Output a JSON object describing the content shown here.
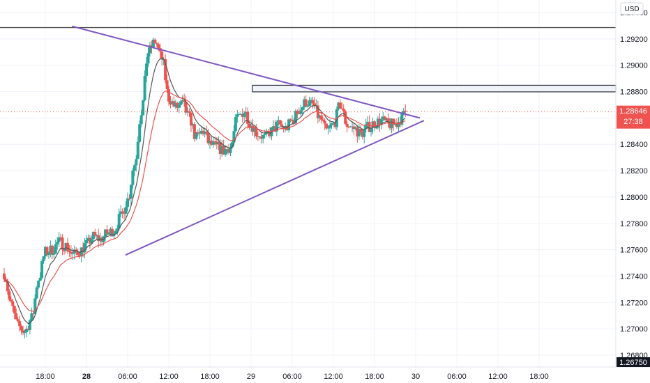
{
  "currency": "USD",
  "price_label": {
    "price": "1.28646",
    "countdown": "27:38",
    "color": "#ef5350"
  },
  "low_label": "1.26750",
  "colors": {
    "up": "#26a69a",
    "down": "#ef5350",
    "ema_fast": "#555555",
    "ema_slow": "#ef5350",
    "trendline": "#7e57c2",
    "zone_fill": "#f0f3fa",
    "zone_border": "#2a2e39",
    "hline": "#555555"
  },
  "chart_data": {
    "type": "candlestick",
    "ylim": [
      1.2675,
      1.2945
    ],
    "y_ticks": [
      "1.29400",
      "1.29200",
      "1.29000",
      "1.28800",
      "1.28600",
      "1.28400",
      "1.28200",
      "1.28000",
      "1.27800",
      "1.27600",
      "1.27400",
      "1.27200",
      "1.27000",
      "1.26800"
    ],
    "y_tick_values": [
      1.294,
      1.292,
      1.29,
      1.288,
      1.286,
      1.284,
      1.282,
      1.28,
      1.278,
      1.276,
      1.274,
      1.272,
      1.27,
      1.268
    ],
    "x_ticks": [
      {
        "label": "18:00",
        "hour": 18,
        "bold": false
      },
      {
        "label": "28",
        "hour": 24,
        "bold": true
      },
      {
        "label": "06:00",
        "hour": 30,
        "bold": false
      },
      {
        "label": "12:00",
        "hour": 36,
        "bold": false
      },
      {
        "label": "18:00",
        "hour": 42,
        "bold": false
      },
      {
        "label": "29",
        "hour": 48,
        "bold": false
      },
      {
        "label": "06:00",
        "hour": 54,
        "bold": false
      },
      {
        "label": "12:00",
        "hour": 60,
        "bold": false
      },
      {
        "label": "18:00",
        "hour": 66,
        "bold": false
      },
      {
        "label": "30",
        "hour": 72,
        "bold": false
      },
      {
        "label": "06:00",
        "hour": 78,
        "bold": false
      },
      {
        "label": "12:00",
        "hour": 84,
        "bold": false
      },
      {
        "label": "18:00",
        "hour": 90,
        "bold": false
      }
    ],
    "anchors": [
      [
        12,
        1.2742
      ],
      [
        13,
        1.2718
      ],
      [
        14,
        1.2702
      ],
      [
        15,
        1.2698
      ],
      [
        16,
        1.2708
      ],
      [
        17,
        1.2738
      ],
      [
        18,
        1.2758
      ],
      [
        19,
        1.276
      ],
      [
        20,
        1.2766
      ],
      [
        21,
        1.2763
      ],
      [
        22,
        1.2756
      ],
      [
        23,
        1.2759
      ],
      [
        24,
        1.2764
      ],
      [
        25,
        1.277
      ],
      [
        26,
        1.2768
      ],
      [
        27,
        1.2772
      ],
      [
        28,
        1.2775
      ],
      [
        29,
        1.2785
      ],
      [
        30,
        1.2798
      ],
      [
        31,
        1.2825
      ],
      [
        32,
        1.2865
      ],
      [
        33,
        1.291
      ],
      [
        34,
        1.2918
      ],
      [
        35,
        1.2905
      ],
      [
        36,
        1.2875
      ],
      [
        37,
        1.2868
      ],
      [
        38,
        1.287
      ],
      [
        39,
        1.286
      ],
      [
        40,
        1.2845
      ],
      [
        41,
        1.285
      ],
      [
        42,
        1.284
      ],
      [
        43,
        1.2838
      ],
      [
        44,
        1.2835
      ],
      [
        45,
        1.2838
      ],
      [
        46,
        1.286
      ],
      [
        47,
        1.2865
      ],
      [
        48,
        1.2855
      ],
      [
        49,
        1.2848
      ],
      [
        50,
        1.2845
      ],
      [
        51,
        1.285
      ],
      [
        52,
        1.2855
      ],
      [
        53,
        1.2852
      ],
      [
        54,
        1.2858
      ],
      [
        55,
        1.2866
      ],
      [
        56,
        1.2872
      ],
      [
        57,
        1.287
      ],
      [
        58,
        1.286
      ],
      [
        59,
        1.285
      ],
      [
        60,
        1.2855
      ],
      [
        61,
        1.287
      ],
      [
        62,
        1.2855
      ],
      [
        63,
        1.2852
      ],
      [
        64,
        1.2848
      ],
      [
        65,
        1.2853
      ],
      [
        66,
        1.2856
      ],
      [
        67,
        1.2858
      ],
      [
        68,
        1.2855
      ],
      [
        69,
        1.2855
      ],
      [
        70,
        1.286
      ],
      [
        70.5,
        1.28646
      ]
    ],
    "trend_lines": [
      {
        "name": "upper",
        "p1": [
          21.9,
          1.29296
        ],
        "p2": [
          72.6,
          1.286
        ]
      },
      {
        "name": "lower",
        "p1": [
          29.7,
          1.2756
        ],
        "p2": [
          73.2,
          1.2858
        ]
      }
    ],
    "horizontal_line": 1.29286,
    "zone": {
      "x_from": 48.2,
      "y_top": 1.28848,
      "y_bottom": 1.28798
    }
  }
}
